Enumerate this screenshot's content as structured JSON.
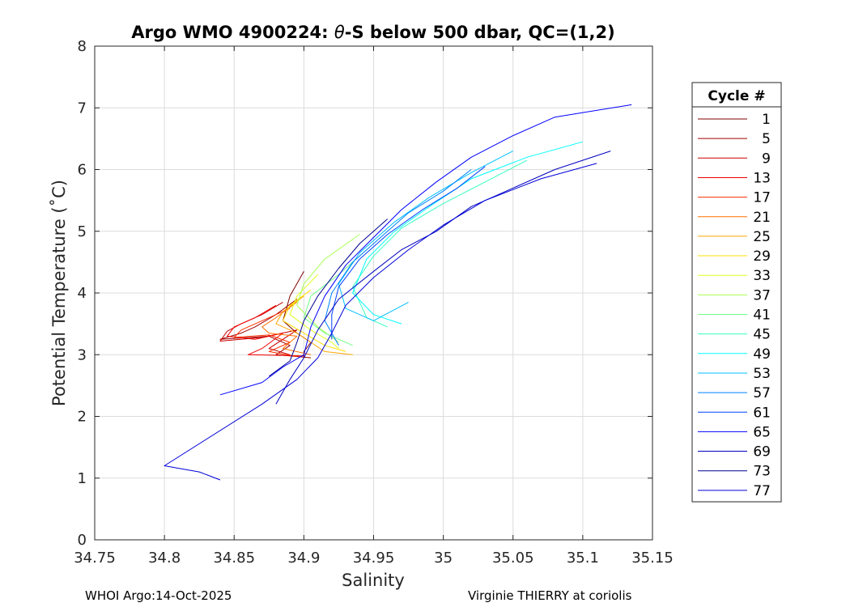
{
  "chart_data": {
    "type": "line",
    "title_prefix": "Argo WMO 4900224: ",
    "title_symbol": "θ",
    "title_suffix": "-S below 500 dbar,  QC=(1,2)",
    "xlabel": "Salinity",
    "ylabel": "Potential Temperature (˚C)",
    "xlim": [
      34.75,
      35.15
    ],
    "ylim": [
      0,
      8
    ],
    "xticks": [
      34.75,
      34.8,
      34.85,
      34.9,
      34.95,
      35,
      35.05,
      35.1,
      35.15
    ],
    "xtick_labels": [
      "34.75",
      "34.8",
      "34.85",
      "34.9",
      "34.95",
      "35",
      "35.05",
      "35.1",
      "35.15"
    ],
    "yticks": [
      0,
      1,
      2,
      3,
      4,
      5,
      6,
      7,
      8
    ],
    "ytick_labels": [
      "0",
      "1",
      "2",
      "3",
      "4",
      "5",
      "6",
      "7",
      "8"
    ],
    "grid": true,
    "legend_title": "Cycle #",
    "legend_position": "right",
    "series": [
      {
        "name": "1",
        "color": "#7f0000",
        "points": [
          [
            34.9,
            4.35
          ],
          [
            34.89,
            3.95
          ],
          [
            34.885,
            3.55
          ],
          [
            34.895,
            3.35
          ],
          [
            34.905,
            3.2
          ],
          [
            34.9,
            3.05
          ],
          [
            34.9,
            2.95
          ]
        ]
      },
      {
        "name": "5",
        "color": "#a00000",
        "points": [
          [
            34.895,
            3.9
          ],
          [
            34.88,
            3.65
          ],
          [
            34.865,
            3.45
          ],
          [
            34.855,
            3.35
          ],
          [
            34.84,
            3.25
          ],
          [
            34.875,
            3.3
          ],
          [
            34.89,
            3.15
          ],
          [
            34.88,
            3.0
          ],
          [
            34.905,
            2.95
          ]
        ]
      },
      {
        "name": "9",
        "color": "#c80000",
        "points": [
          [
            34.885,
            3.85
          ],
          [
            34.87,
            3.65
          ],
          [
            34.855,
            3.5
          ],
          [
            34.845,
            3.38
          ],
          [
            34.84,
            3.22
          ],
          [
            34.87,
            3.28
          ],
          [
            34.895,
            3.4
          ],
          [
            34.875,
            3.1
          ],
          [
            34.89,
            3.0
          ]
        ]
      },
      {
        "name": "13",
        "color": "#f00000",
        "points": [
          [
            34.88,
            3.8
          ],
          [
            34.865,
            3.6
          ],
          [
            34.85,
            3.45
          ],
          [
            34.845,
            3.3
          ],
          [
            34.865,
            3.25
          ],
          [
            34.885,
            3.35
          ],
          [
            34.87,
            3.1
          ],
          [
            34.86,
            3.0
          ],
          [
            34.9,
            2.98
          ]
        ]
      },
      {
        "name": "17",
        "color": "#ff3000",
        "points": [
          [
            34.89,
            3.75
          ],
          [
            34.87,
            3.55
          ],
          [
            34.855,
            3.4
          ],
          [
            34.85,
            3.28
          ],
          [
            34.875,
            3.32
          ],
          [
            34.89,
            3.2
          ],
          [
            34.875,
            3.05
          ],
          [
            34.895,
            2.97
          ]
        ]
      },
      {
        "name": "21",
        "color": "#ff7000",
        "points": [
          [
            34.895,
            3.85
          ],
          [
            34.88,
            3.6
          ],
          [
            34.87,
            3.45
          ],
          [
            34.875,
            3.35
          ],
          [
            34.895,
            3.3
          ],
          [
            34.885,
            3.1
          ],
          [
            34.905,
            3.0
          ]
        ]
      },
      {
        "name": "25",
        "color": "#ffa800",
        "points": [
          [
            34.9,
            3.95
          ],
          [
            34.885,
            3.7
          ],
          [
            34.88,
            3.5
          ],
          [
            34.895,
            3.35
          ],
          [
            34.905,
            3.2
          ],
          [
            34.915,
            3.05
          ],
          [
            34.935,
            3.0
          ]
        ]
      },
      {
        "name": "29",
        "color": "#ffe000",
        "points": [
          [
            34.905,
            4.05
          ],
          [
            34.89,
            3.8
          ],
          [
            34.885,
            3.55
          ],
          [
            34.9,
            3.35
          ],
          [
            34.915,
            3.15
          ],
          [
            34.93,
            3.05
          ]
        ]
      },
      {
        "name": "33",
        "color": "#e0ff20",
        "points": [
          [
            34.91,
            4.3
          ],
          [
            34.895,
            3.95
          ],
          [
            34.89,
            3.65
          ],
          [
            34.905,
            3.4
          ],
          [
            34.92,
            3.2
          ],
          [
            34.925,
            3.1
          ]
        ]
      },
      {
        "name": "37",
        "color": "#a8ff50",
        "points": [
          [
            34.94,
            4.95
          ],
          [
            34.915,
            4.55
          ],
          [
            34.9,
            4.15
          ],
          [
            34.895,
            3.8
          ],
          [
            34.91,
            3.45
          ],
          [
            34.925,
            3.2
          ]
        ]
      },
      {
        "name": "41",
        "color": "#70ff88",
        "points": [
          [
            34.945,
            4.7
          ],
          [
            34.925,
            4.3
          ],
          [
            34.905,
            3.95
          ],
          [
            34.9,
            3.6
          ],
          [
            34.915,
            3.35
          ],
          [
            34.935,
            3.15
          ]
        ]
      },
      {
        "name": "45",
        "color": "#38ffc0",
        "points": [
          [
            35.06,
            6.15
          ],
          [
            35.03,
            5.8
          ],
          [
            35.0,
            5.45
          ],
          [
            34.97,
            5.05
          ],
          [
            34.95,
            4.6
          ],
          [
            34.935,
            4.1
          ],
          [
            34.945,
            3.6
          ],
          [
            34.96,
            3.45
          ]
        ]
      },
      {
        "name": "49",
        "color": "#00ffff",
        "points": [
          [
            35.1,
            6.45
          ],
          [
            35.06,
            6.2
          ],
          [
            35.02,
            5.85
          ],
          [
            34.99,
            5.4
          ],
          [
            34.965,
            5.0
          ],
          [
            34.945,
            4.55
          ],
          [
            34.935,
            4.0
          ],
          [
            34.95,
            3.65
          ],
          [
            34.97,
            3.5
          ]
        ]
      },
      {
        "name": "53",
        "color": "#00c0ff",
        "points": [
          [
            35.05,
            6.3
          ],
          [
            35.02,
            5.95
          ],
          [
            34.99,
            5.55
          ],
          [
            34.965,
            5.15
          ],
          [
            34.94,
            4.65
          ],
          [
            34.925,
            4.15
          ],
          [
            34.93,
            3.75
          ],
          [
            34.95,
            3.55
          ],
          [
            34.975,
            3.85
          ]
        ]
      },
      {
        "name": "57",
        "color": "#0080ff",
        "points": [
          [
            35.02,
            6.0
          ],
          [
            35.0,
            5.65
          ],
          [
            34.975,
            5.3
          ],
          [
            34.955,
            4.9
          ],
          [
            34.935,
            4.5
          ],
          [
            34.92,
            4.0
          ],
          [
            34.915,
            3.55
          ],
          [
            34.925,
            3.15
          ]
        ]
      },
      {
        "name": "61",
        "color": "#0040ff",
        "points": [
          [
            35.03,
            6.05
          ],
          [
            35.01,
            5.7
          ],
          [
            34.985,
            5.35
          ],
          [
            34.96,
            4.95
          ],
          [
            34.94,
            4.55
          ],
          [
            34.925,
            4.1
          ],
          [
            34.92,
            3.65
          ],
          [
            34.92,
            3.25
          ]
        ]
      },
      {
        "name": "65",
        "color": "#0000ff",
        "points": [
          [
            35.135,
            7.05
          ],
          [
            35.08,
            6.85
          ],
          [
            35.05,
            6.55
          ],
          [
            35.02,
            6.2
          ],
          [
            34.995,
            5.8
          ],
          [
            34.97,
            5.35
          ],
          [
            34.95,
            4.9
          ],
          [
            34.93,
            4.45
          ],
          [
            34.915,
            3.95
          ],
          [
            34.905,
            3.45
          ],
          [
            34.9,
            3.0
          ],
          [
            34.885,
            2.8
          ],
          [
            34.87,
            2.55
          ],
          [
            34.84,
            2.35
          ]
        ]
      },
      {
        "name": "69",
        "color": "#0000c0",
        "points": [
          [
            35.12,
            6.3
          ],
          [
            35.08,
            6.0
          ],
          [
            35.05,
            5.7
          ],
          [
            35.02,
            5.4
          ],
          [
            34.995,
            5.0
          ],
          [
            34.97,
            4.7
          ],
          [
            34.95,
            4.35
          ],
          [
            34.925,
            3.9
          ],
          [
            34.91,
            3.4
          ],
          [
            34.9,
            2.95
          ],
          [
            34.89,
            2.6
          ],
          [
            34.88,
            2.2
          ]
        ]
      },
      {
        "name": "73",
        "color": "#000090",
        "points": [
          [
            34.96,
            5.2
          ],
          [
            34.94,
            4.8
          ],
          [
            34.925,
            4.4
          ],
          [
            34.91,
            3.95
          ],
          [
            34.9,
            3.55
          ],
          [
            34.895,
            3.2
          ],
          [
            34.89,
            2.9
          ],
          [
            34.875,
            2.65
          ]
        ]
      },
      {
        "name": "77",
        "color": "#0000d8",
        "points": [
          [
            35.11,
            6.1
          ],
          [
            35.07,
            5.85
          ],
          [
            35.03,
            5.5
          ],
          [
            35.0,
            5.1
          ],
          [
            34.975,
            4.7
          ],
          [
            34.95,
            4.25
          ],
          [
            34.93,
            3.8
          ],
          [
            34.92,
            3.35
          ],
          [
            34.91,
            2.95
          ],
          [
            34.895,
            2.6
          ],
          [
            34.87,
            2.2
          ],
          [
            34.8,
            1.2
          ],
          [
            34.825,
            1.1
          ],
          [
            34.84,
            0.97
          ]
        ]
      }
    ]
  },
  "footer": {
    "left": "WHOI Argo:14-Oct-2025",
    "right": "Virginie THIERRY at coriolis"
  }
}
